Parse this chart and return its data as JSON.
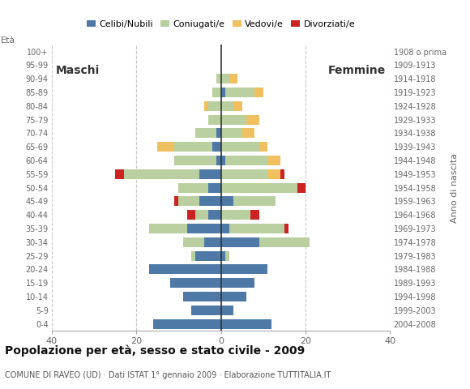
{
  "age_groups": [
    "0-4",
    "5-9",
    "10-14",
    "15-19",
    "20-24",
    "25-29",
    "30-34",
    "35-39",
    "40-44",
    "45-49",
    "50-54",
    "55-59",
    "60-64",
    "65-69",
    "70-74",
    "75-79",
    "80-84",
    "85-89",
    "90-94",
    "95-99",
    "100+"
  ],
  "birth_years": [
    "2004-2008",
    "1999-2003",
    "1994-1998",
    "1989-1993",
    "1984-1988",
    "1979-1983",
    "1974-1978",
    "1969-1973",
    "1964-1968",
    "1959-1963",
    "1954-1958",
    "1949-1953",
    "1944-1948",
    "1939-1943",
    "1934-1938",
    "1929-1933",
    "1924-1928",
    "1919-1923",
    "1914-1918",
    "1909-1913",
    "1908 o prima"
  ],
  "colors": {
    "celibi": "#4e79a7",
    "coniugati": "#b9cfa0",
    "vedovi": "#f0c060",
    "divorziati": "#cc2222"
  },
  "maschi": {
    "celibi": [
      16,
      7,
      9,
      12,
      17,
      6,
      4,
      8,
      3,
      5,
      3,
      5,
      1,
      2,
      1,
      0,
      0,
      0,
      0,
      0,
      0
    ],
    "coniugati": [
      0,
      0,
      0,
      0,
      0,
      1,
      5,
      9,
      3,
      5,
      7,
      18,
      10,
      9,
      5,
      3,
      3,
      2,
      1,
      0,
      0
    ],
    "vedovi": [
      0,
      0,
      0,
      0,
      0,
      0,
      0,
      0,
      0,
      0,
      0,
      0,
      0,
      4,
      0,
      0,
      1,
      0,
      0,
      0,
      0
    ],
    "divorziati": [
      0,
      0,
      0,
      0,
      0,
      0,
      0,
      0,
      2,
      1,
      0,
      2,
      0,
      0,
      0,
      0,
      0,
      0,
      0,
      0,
      0
    ]
  },
  "femmine": {
    "celibi": [
      12,
      3,
      6,
      8,
      11,
      1,
      9,
      2,
      0,
      3,
      0,
      0,
      1,
      0,
      0,
      0,
      0,
      1,
      0,
      0,
      0
    ],
    "coniugati": [
      0,
      0,
      0,
      0,
      0,
      1,
      12,
      13,
      7,
      10,
      18,
      11,
      10,
      9,
      5,
      6,
      3,
      7,
      2,
      0,
      0
    ],
    "vedovi": [
      0,
      0,
      0,
      0,
      0,
      0,
      0,
      0,
      0,
      0,
      0,
      3,
      3,
      2,
      3,
      3,
      2,
      2,
      2,
      0,
      0
    ],
    "divorziati": [
      0,
      0,
      0,
      0,
      0,
      0,
      0,
      1,
      2,
      0,
      2,
      1,
      0,
      0,
      0,
      0,
      0,
      0,
      0,
      0,
      0
    ]
  },
  "title": "Popolazione per età, sesso e stato civile - 2009",
  "subtitle": "COMUNE DI RAVEO (UD) · Dati ISTAT 1° gennaio 2009 · Elaborazione TUTTITALIA.IT",
  "xlabel_left": "Maschi",
  "xlabel_right": "Femmine",
  "ylabel": "Età",
  "ylabel_right": "Anno di nascita",
  "xlim": 40,
  "legend_labels": [
    "Celibi/Nubili",
    "Coniugati/e",
    "Vedovi/e",
    "Divorziati/e"
  ],
  "bg_color": "#ffffff",
  "grid_color": "#c8c8c8"
}
